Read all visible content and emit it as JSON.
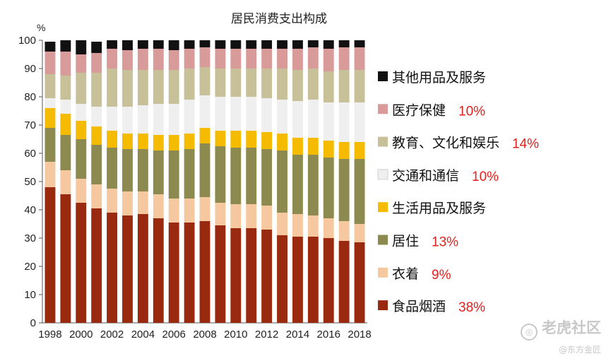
{
  "chart_data": {
    "type": "bar",
    "stacked": true,
    "title": "居民消费支出构成",
    "ylabel": "%",
    "ylim": [
      0,
      100
    ],
    "yticks": [
      0,
      10,
      20,
      30,
      40,
      50,
      60,
      70,
      80,
      90,
      100
    ],
    "categories": [
      "1998",
      "1999",
      "2000",
      "2001",
      "2002",
      "2003",
      "2004",
      "2005",
      "2006",
      "2007",
      "2008",
      "2009",
      "2010",
      "2011",
      "2012",
      "2013",
      "2014",
      "2015",
      "2016",
      "2017",
      "2018"
    ],
    "xtick_labels": [
      "1998",
      "2000",
      "2002",
      "2004",
      "2006",
      "2008",
      "2010",
      "2012",
      "2014",
      "2016",
      "2018"
    ],
    "series": [
      {
        "name": "食品烟酒",
        "color": "#9a2a0f",
        "values": [
          48,
          45.5,
          42.5,
          40.5,
          39,
          38,
          38.5,
          37,
          35.5,
          35.5,
          36,
          34.5,
          33.5,
          33.5,
          33,
          31,
          30.5,
          30.5,
          30,
          29,
          28.5
        ]
      },
      {
        "name": "衣着",
        "color": "#f5c8a0",
        "values": [
          9,
          8.5,
          8.5,
          8.5,
          8.5,
          8.5,
          8,
          8.5,
          8.5,
          8.5,
          8.5,
          8,
          8.5,
          8.5,
          8.5,
          8,
          8,
          7.5,
          7,
          7,
          6.5
        ]
      },
      {
        "name": "居住",
        "color": "#8c8a4e",
        "values": [
          12,
          12.5,
          14,
          14,
          14.5,
          15,
          15,
          15.5,
          17,
          17.5,
          19,
          20,
          20,
          20,
          20,
          22,
          21,
          21.5,
          21.5,
          22,
          23
        ]
      },
      {
        "name": "生活用品及服务",
        "color": "#f5bb00",
        "values": [
          7,
          7.5,
          6.5,
          6.5,
          6,
          5.5,
          5.5,
          5.5,
          5.5,
          5.5,
          5.5,
          5.5,
          6,
          6,
          6,
          6,
          6,
          6,
          6,
          6,
          6
        ]
      },
      {
        "name": "交通和通信",
        "color": "#efefef",
        "values": [
          3.5,
          5,
          6,
          7,
          8.5,
          9.5,
          10,
          11,
          11,
          12,
          11.5,
          12,
          12,
          12,
          12,
          12,
          13,
          13.5,
          13.5,
          14,
          14
        ]
      },
      {
        "name": "教育、文化和娱乐",
        "color": "#c8c098",
        "values": [
          8.5,
          8.5,
          11,
          12,
          13.5,
          13,
          12.5,
          12,
          12,
          11,
          10,
          10,
          10,
          10,
          10.5,
          11,
          11,
          11,
          11,
          11.5,
          11.5
        ]
      },
      {
        "name": "医疗保健",
        "color": "#d99a9a",
        "values": [
          8,
          8.5,
          6.5,
          7,
          7,
          7,
          7.5,
          7.5,
          7,
          7,
          7,
          7,
          7,
          7,
          7,
          7,
          7.5,
          7.5,
          8,
          8,
          8
        ]
      },
      {
        "name": "其他用品及服务",
        "color": "#111111",
        "values": [
          3.5,
          4,
          5,
          4,
          3,
          3.5,
          3,
          3,
          3.5,
          3,
          2.5,
          3,
          3,
          3,
          3,
          3,
          3,
          2.5,
          3,
          2.5,
          2.5
        ]
      }
    ],
    "legend_order": [
      "其他用品及服务",
      "医疗保健",
      "教育、文化和娱乐",
      "交通和通信",
      "生活用品及服务",
      "居住",
      "衣着",
      "食品烟酒"
    ],
    "annotations": {
      "医疗保健": "10%",
      "教育、文化和娱乐": "14%",
      "交通和通信": "10%",
      "居住": "13%",
      "衣着": "9%",
      "食品烟酒": "38%"
    },
    "legend_position": "right",
    "grid": false
  },
  "watermark": {
    "main": "老虎社区",
    "sub": "@东方金匠"
  }
}
